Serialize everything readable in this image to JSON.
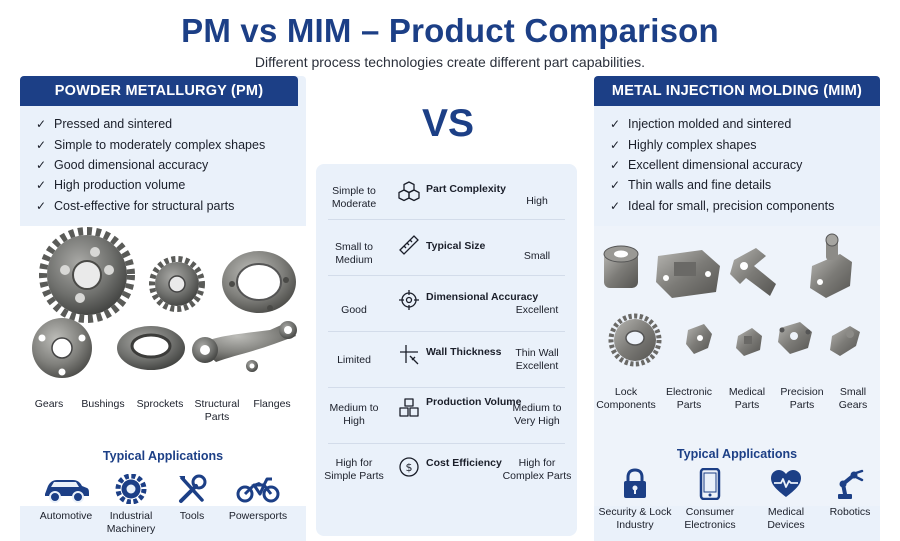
{
  "header": {
    "title": "PM vs MIM – Product Comparison",
    "subtitle": "Different process technologies create different part capabilities."
  },
  "vs_label": "VS",
  "pm": {
    "title": "POWDER METALLURGY (PM)",
    "features": [
      "Pressed and sintered",
      "Simple to moderately complex shapes",
      "Good dimensional accuracy",
      "High production volume",
      "Cost-effective for structural parts"
    ],
    "parts": [
      "Gears",
      "Bushings",
      "Sprockets",
      "Structural Parts",
      "Flanges"
    ],
    "apps_title": "Typical Applications",
    "apps": [
      {
        "label": "Automotive",
        "icon": "car-icon"
      },
      {
        "label": "Industrial Machinery",
        "icon": "gear-icon"
      },
      {
        "label": "Tools",
        "icon": "tools-icon"
      },
      {
        "label": "Powersports",
        "icon": "motorcycle-icon"
      }
    ]
  },
  "mim": {
    "title": "METAL INJECTION MOLDING (MIM)",
    "features": [
      "Injection molded and sintered",
      "Highly complex shapes",
      "Excellent dimensional accuracy",
      "Thin walls and fine details",
      "Ideal for small, precision components"
    ],
    "parts": [
      "Lock Components",
      "Electronic Parts",
      "Medical Parts",
      "Precision Parts",
      "Small Gears"
    ],
    "apps_title": "Typical Applications",
    "apps": [
      {
        "label": "Security & Lock Industry",
        "icon": "lock-icon"
      },
      {
        "label": "Consumer Electronics",
        "icon": "phone-icon"
      },
      {
        "label": "Medical Devices",
        "icon": "heart-icon"
      },
      {
        "label": "Robotics",
        "icon": "robot-arm-icon"
      }
    ]
  },
  "comparison": [
    {
      "pm": "Simple to Moderate",
      "label": "Part Complexity",
      "mim": "High",
      "icon": "cubes-icon"
    },
    {
      "pm": "Small to Medium",
      "label": "Typical Size",
      "mim": "Small",
      "icon": "ruler-icon"
    },
    {
      "pm": "Good",
      "label": "Dimensional Accuracy",
      "mim": "Excellent",
      "icon": "crosshair-icon"
    },
    {
      "pm": "Limited",
      "label": "Wall Thickness",
      "mim": "Thin Wall Excellent",
      "icon": "thickness-icon"
    },
    {
      "pm": "Medium to High",
      "label": "Production Volume",
      "mim": "Medium to Very High",
      "icon": "boxes-icon"
    },
    {
      "pm": "High for Simple Parts",
      "label": "Cost Efficiency",
      "mim": "High for Complex Parts",
      "icon": "dollar-icon"
    }
  ]
}
